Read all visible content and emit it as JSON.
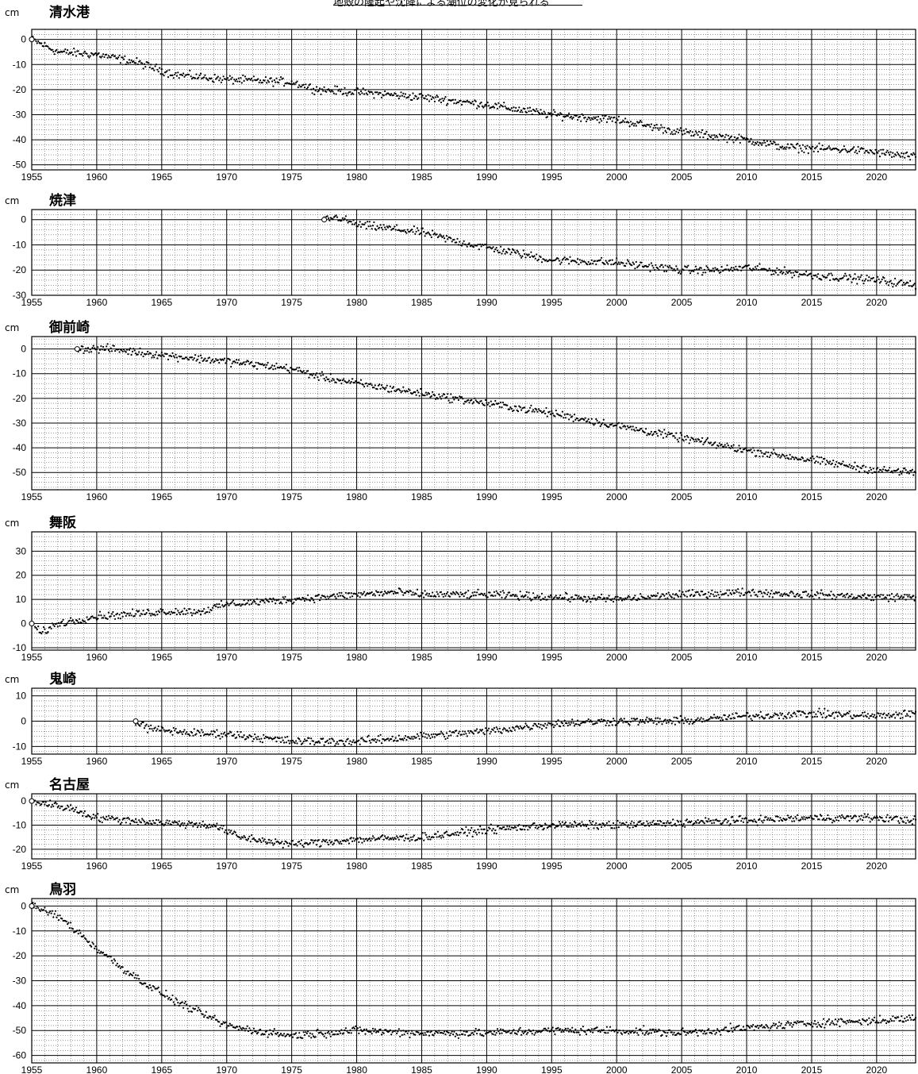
{
  "header": {
    "caption": "地殻の隆起や沈降による潮位の変化が見られる"
  },
  "unit_label": "cm",
  "chart_data": [
    {
      "type": "scatter",
      "title": "清水港",
      "ylabel": "cm",
      "xlim": [
        1955,
        2023
      ],
      "ylim": [
        -52,
        4
      ],
      "yticks": [
        0,
        -10,
        -20,
        -30,
        -40,
        -50
      ],
      "xticks": [
        1955,
        1960,
        1965,
        1970,
        1975,
        1980,
        1985,
        1990,
        1995,
        2000,
        2005,
        2010,
        2015,
        2020
      ],
      "start": 1955,
      "anchors": [
        [
          1955,
          0
        ],
        [
          1957,
          -5
        ],
        [
          1960,
          -6
        ],
        [
          1963,
          -9
        ],
        [
          1966,
          -14
        ],
        [
          1970,
          -16
        ],
        [
          1975,
          -17
        ],
        [
          1977,
          -20
        ],
        [
          1980,
          -21
        ],
        [
          1985,
          -23
        ],
        [
          1990,
          -26
        ],
        [
          1995,
          -30
        ],
        [
          2000,
          -32
        ],
        [
          2005,
          -37
        ],
        [
          2010,
          -40
        ],
        [
          2013,
          -43
        ],
        [
          2018,
          -44
        ],
        [
          2020,
          -45
        ],
        [
          2023,
          -47
        ]
      ]
    },
    {
      "type": "scatter",
      "title": "焼津",
      "ylabel": "cm",
      "xlim": [
        1955,
        2023
      ],
      "ylim": [
        -30,
        4
      ],
      "yticks": [
        0,
        -10,
        -20,
        -30
      ],
      "xticks": [
        1955,
        1960,
        1965,
        1970,
        1975,
        1980,
        1985,
        1990,
        1995,
        2000,
        2005,
        2010,
        2015,
        2020
      ],
      "start": 1977.5,
      "anchors": [
        [
          1977.5,
          0
        ],
        [
          1978.5,
          1
        ],
        [
          1980,
          -2
        ],
        [
          1985,
          -5
        ],
        [
          1988,
          -9
        ],
        [
          1990,
          -11
        ],
        [
          1995,
          -16
        ],
        [
          2000,
          -17
        ],
        [
          2005,
          -20
        ],
        [
          2008,
          -20
        ],
        [
          2010,
          -19
        ],
        [
          2015,
          -22
        ],
        [
          2020,
          -24
        ],
        [
          2023,
          -26
        ]
      ]
    },
    {
      "type": "scatter",
      "title": "御前崎",
      "ylabel": "cm",
      "xlim": [
        1955,
        2023
      ],
      "ylim": [
        -57,
        5
      ],
      "yticks": [
        0,
        -10,
        -20,
        -30,
        -40,
        -50
      ],
      "xticks": [
        1955,
        1960,
        1965,
        1970,
        1975,
        1980,
        1985,
        1990,
        1995,
        2000,
        2005,
        2010,
        2015,
        2020
      ],
      "start": 1958.5,
      "anchors": [
        [
          1958.5,
          0
        ],
        [
          1961,
          0
        ],
        [
          1966,
          -3
        ],
        [
          1970,
          -5
        ],
        [
          1975,
          -8
        ],
        [
          1977,
          -11
        ],
        [
          1980,
          -14
        ],
        [
          1985,
          -18
        ],
        [
          1990,
          -22
        ],
        [
          1995,
          -26
        ],
        [
          2000,
          -31
        ],
        [
          2005,
          -36
        ],
        [
          2010,
          -41
        ],
        [
          2015,
          -45
        ],
        [
          2020,
          -49
        ],
        [
          2023,
          -50
        ]
      ]
    },
    {
      "type": "scatter",
      "title": "舞阪",
      "ylabel": "cm",
      "xlim": [
        1955,
        2023
      ],
      "ylim": [
        -11,
        38
      ],
      "yticks": [
        30,
        20,
        10,
        0,
        -10
      ],
      "xticks": [
        1955,
        1960,
        1965,
        1970,
        1975,
        1980,
        1985,
        1990,
        1995,
        2000,
        2005,
        2010,
        2015,
        2020
      ],
      "start": 1955,
      "anchors": [
        [
          1955,
          0
        ],
        [
          1955.7,
          -4
        ],
        [
          1957,
          0
        ],
        [
          1960,
          3
        ],
        [
          1963,
          4
        ],
        [
          1965,
          5
        ],
        [
          1968,
          5
        ],
        [
          1970,
          8
        ],
        [
          1975,
          10
        ],
        [
          1980,
          12
        ],
        [
          1983,
          13
        ],
        [
          1985,
          12
        ],
        [
          1990,
          12
        ],
        [
          1995,
          11
        ],
        [
          2000,
          10
        ],
        [
          2005,
          12
        ],
        [
          2010,
          13
        ],
        [
          2015,
          12
        ],
        [
          2020,
          11
        ],
        [
          2023,
          11
        ]
      ]
    },
    {
      "type": "scatter",
      "title": "鬼崎",
      "ylabel": "cm",
      "xlim": [
        1955,
        2023
      ],
      "ylim": [
        -13,
        13
      ],
      "yticks": [
        10,
        0,
        -10
      ],
      "xticks": [
        1955,
        1960,
        1965,
        1970,
        1975,
        1980,
        1985,
        1990,
        1995,
        2000,
        2005,
        2010,
        2015,
        2020
      ],
      "start": 1963,
      "anchors": [
        [
          1963,
          0
        ],
        [
          1964,
          -3
        ],
        [
          1968,
          -5
        ],
        [
          1970,
          -5
        ],
        [
          1975,
          -8
        ],
        [
          1980,
          -8
        ],
        [
          1985,
          -6
        ],
        [
          1990,
          -4
        ],
        [
          1995,
          -1
        ],
        [
          2000,
          0
        ],
        [
          2005,
          0
        ],
        [
          2010,
          2
        ],
        [
          2015,
          3
        ],
        [
          2020,
          2
        ],
        [
          2023,
          3
        ]
      ]
    },
    {
      "type": "scatter",
      "title": "名古屋",
      "ylabel": "cm",
      "xlim": [
        1955,
        2023
      ],
      "ylim": [
        -24,
        3
      ],
      "yticks": [
        0,
        -10,
        -20
      ],
      "xticks": [
        1955,
        1960,
        1965,
        1970,
        1975,
        1980,
        1985,
        1990,
        1995,
        2000,
        2005,
        2010,
        2015,
        2020
      ],
      "start": 1955,
      "anchors": [
        [
          1955,
          0
        ],
        [
          1958,
          -3
        ],
        [
          1960,
          -7
        ],
        [
          1965,
          -9
        ],
        [
          1969,
          -10
        ],
        [
          1971,
          -15
        ],
        [
          1975,
          -18
        ],
        [
          1980,
          -16
        ],
        [
          1985,
          -15
        ],
        [
          1990,
          -12
        ],
        [
          1995,
          -10
        ],
        [
          2000,
          -10
        ],
        [
          2005,
          -9
        ],
        [
          2010,
          -8
        ],
        [
          2015,
          -7
        ],
        [
          2020,
          -7
        ],
        [
          2023,
          -8
        ]
      ]
    },
    {
      "type": "scatter",
      "title": "鳥羽",
      "ylabel": "cm",
      "xlim": [
        1955,
        2023
      ],
      "ylim": [
        -63,
        3
      ],
      "yticks": [
        0,
        -10,
        -20,
        -30,
        -40,
        -50,
        -60
      ],
      "xticks": [
        1955,
        1960,
        1965,
        1970,
        1975,
        1980,
        1985,
        1990,
        1995,
        2000,
        2005,
        2010,
        2015,
        2020
      ],
      "start": 1955,
      "anchors": [
        [
          1955,
          0
        ],
        [
          1957,
          -4
        ],
        [
          1958,
          -8
        ],
        [
          1960,
          -17
        ],
        [
          1962,
          -25
        ],
        [
          1964,
          -32
        ],
        [
          1966,
          -38
        ],
        [
          1968,
          -43
        ],
        [
          1970,
          -48
        ],
        [
          1972,
          -50
        ],
        [
          1975,
          -52
        ],
        [
          1980,
          -50
        ],
        [
          1985,
          -51
        ],
        [
          1990,
          -51
        ],
        [
          1995,
          -50
        ],
        [
          2000,
          -50
        ],
        [
          2005,
          -51
        ],
        [
          2010,
          -49
        ],
        [
          2015,
          -47
        ],
        [
          2020,
          -46
        ],
        [
          2023,
          -45
        ]
      ]
    }
  ]
}
